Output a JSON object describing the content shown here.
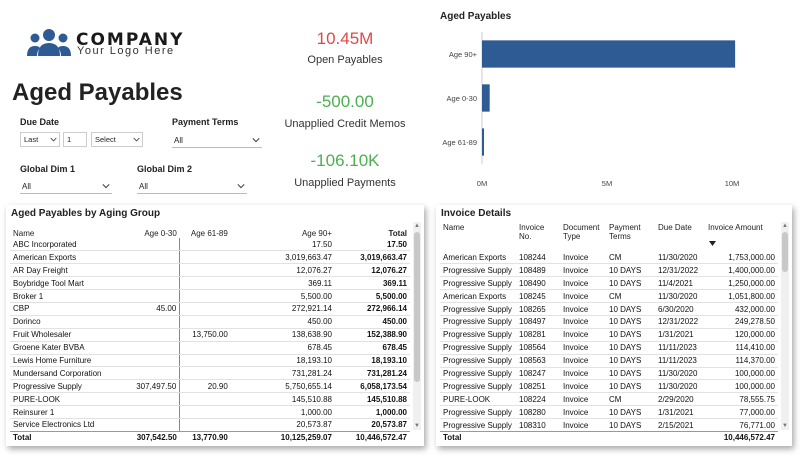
{
  "logo": {
    "company": "COMPANY",
    "tagline": "Your Logo Here"
  },
  "page_title": "Aged Payables",
  "slicers": {
    "due_date": {
      "label": "Due Date",
      "period": "Last",
      "count": "1",
      "unit": "Select"
    },
    "payment_terms": {
      "label": "Payment Terms",
      "value": "All"
    },
    "global_dim1": {
      "label": "Global Dim 1",
      "value": "All"
    },
    "global_dim2": {
      "label": "Global Dim 2",
      "value": "All"
    }
  },
  "kpis": [
    {
      "value": "10.45M",
      "label": "Open Payables",
      "color": "#e04848"
    },
    {
      "value": "-500.00",
      "label": "Unapplied Credit Memos",
      "color": "#4caf50"
    },
    {
      "value": "-106.10K",
      "label": "Unapplied Payments",
      "color": "#4caf50"
    }
  ],
  "chart_data": {
    "type": "bar",
    "orientation": "horizontal",
    "title": "Aged Payables",
    "categories": [
      "Age 90+",
      "Age 0-30",
      "Age 61-89"
    ],
    "values": [
      10125259.07,
      307542.5,
      13770.9
    ],
    "xlim": [
      0,
      10000000
    ],
    "ticks": [
      0,
      5000000,
      10000000
    ],
    "tick_labels": [
      "0M",
      "5M",
      "10M"
    ],
    "color": "#2e5b94"
  },
  "aging_table": {
    "title": "Aged Payables by Aging Group",
    "columns": [
      "Name",
      "Age 0-30",
      "Age 61-89",
      "Age 90+",
      "Total"
    ],
    "rows": [
      [
        "ABC Incorporated",
        "",
        "",
        "17.50",
        "17.50"
      ],
      [
        "American Exports",
        "",
        "",
        "3,019,663.47",
        "3,019,663.47"
      ],
      [
        "AR Day Freight",
        "",
        "",
        "12,076.27",
        "12,076.27"
      ],
      [
        "Boybridge Tool Mart",
        "",
        "",
        "369.11",
        "369.11"
      ],
      [
        "Broker 1",
        "",
        "",
        "5,500.00",
        "5,500.00"
      ],
      [
        "CBP",
        "45.00",
        "",
        "272,921.14",
        "272,966.14"
      ],
      [
        "Dorinco",
        "",
        "",
        "450.00",
        "450.00"
      ],
      [
        "Fruit Wholesaler",
        "",
        "13,750.00",
        "138,638.90",
        "152,388.90"
      ],
      [
        "Groene Kater BVBA",
        "",
        "",
        "678.45",
        "678.45"
      ],
      [
        "Lewis Home Furniture",
        "",
        "",
        "18,193.10",
        "18,193.10"
      ],
      [
        "Mundersand Corporation",
        "",
        "",
        "731,281.24",
        "731,281.24"
      ],
      [
        "Progressive Supply",
        "307,497.50",
        "20.90",
        "5,750,655.14",
        "6,058,173.54"
      ],
      [
        "PURE-LOOK",
        "",
        "",
        "145,510.88",
        "145,510.88"
      ],
      [
        "Reinsurer 1",
        "",
        "",
        "1,000.00",
        "1,000.00"
      ],
      [
        "Service Electronics Ltd",
        "",
        "",
        "20,573.87",
        "20,573.87"
      ]
    ],
    "total": [
      "Total",
      "307,542.50",
      "13,770.90",
      "10,125,259.07",
      "10,446,572.47"
    ]
  },
  "invoice_table": {
    "title": "Invoice Details",
    "columns": [
      "Name",
      "Invoice No.",
      "Document Type",
      "Payment Terms",
      "Due Date",
      "Invoice Amount"
    ],
    "rows": [
      [
        "American Exports",
        "108244",
        "Invoice",
        "CM",
        "11/30/2020",
        "1,753,000.00"
      ],
      [
        "Progressive Supply",
        "108489",
        "Invoice",
        "10 DAYS",
        "12/31/2022",
        "1,400,000.00"
      ],
      [
        "Progressive Supply",
        "108490",
        "Invoice",
        "10 DAYS",
        "11/4/2021",
        "1,250,000.00"
      ],
      [
        "American Exports",
        "108245",
        "Invoice",
        "CM",
        "11/30/2020",
        "1,051,800.00"
      ],
      [
        "Progressive Supply",
        "108265",
        "Invoice",
        "10 DAYS",
        "6/30/2020",
        "432,000.00"
      ],
      [
        "Progressive Supply",
        "108497",
        "Invoice",
        "10 DAYS",
        "12/31/2022",
        "249,278.50"
      ],
      [
        "Progressive Supply",
        "108281",
        "Invoice",
        "10 DAYS",
        "1/31/2021",
        "120,000.00"
      ],
      [
        "Progressive Supply",
        "108564",
        "Invoice",
        "10 DAYS",
        "11/11/2023",
        "114,410.00"
      ],
      [
        "Progressive Supply",
        "108563",
        "Invoice",
        "10 DAYS",
        "11/11/2023",
        "114,370.00"
      ],
      [
        "Progressive Supply",
        "108247",
        "Invoice",
        "10 DAYS",
        "11/30/2020",
        "100,000.00"
      ],
      [
        "Progressive Supply",
        "108251",
        "Invoice",
        "10 DAYS",
        "11/30/2020",
        "100,000.00"
      ],
      [
        "PURE-LOOK",
        "108224",
        "Invoice",
        "CM",
        "2/29/2020",
        "78,555.75"
      ],
      [
        "Progressive Supply",
        "108280",
        "Invoice",
        "10 DAYS",
        "1/31/2021",
        "77,000.00"
      ],
      [
        "Progressive Supply",
        "108310",
        "Invoice",
        "10 DAYS",
        "2/15/2021",
        "76,771.00"
      ]
    ],
    "total": [
      "Total",
      "",
      "",
      "",
      "",
      "10,446,572.47"
    ]
  }
}
